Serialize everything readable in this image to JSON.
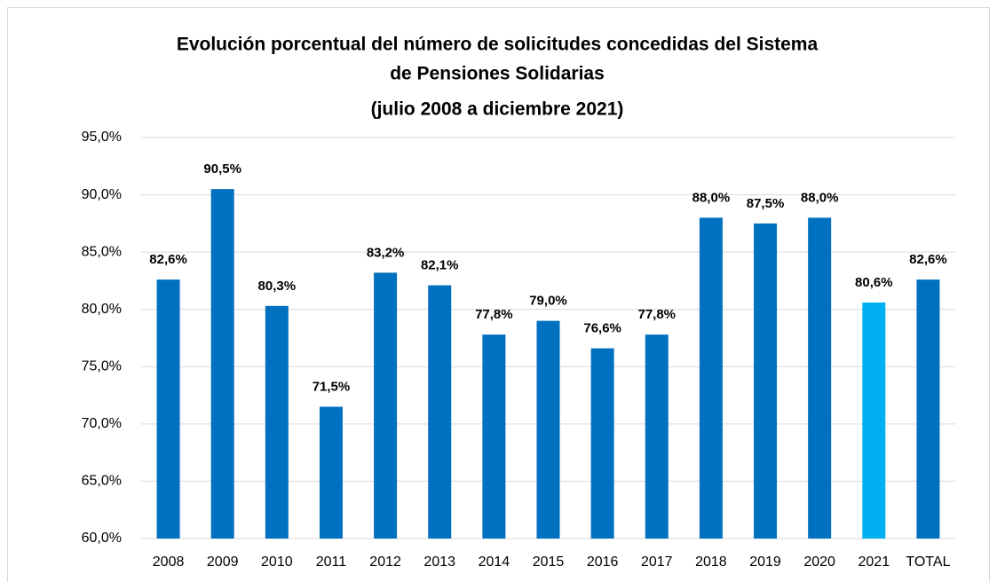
{
  "chart_data": {
    "type": "bar",
    "title": [
      "Evolución porcentual del número de solicitudes concedidas del Sistema",
      "de Pensiones Solidarias"
    ],
    "subtitle": "(julio 2008 a diciembre 2021)",
    "categories": [
      "2008",
      "2009",
      "2010",
      "2011",
      "2012",
      "2013",
      "2014",
      "2015",
      "2016",
      "2017",
      "2018",
      "2019",
      "2020",
      "2021",
      "TOTAL"
    ],
    "values": [
      82.6,
      90.5,
      80.3,
      71.5,
      83.2,
      82.1,
      77.8,
      79.0,
      76.6,
      77.8,
      88.0,
      87.5,
      88.0,
      80.6,
      82.6
    ],
    "value_labels": [
      "82,6%",
      "90,5%",
      "80,3%",
      "71,5%",
      "83,2%",
      "82,1%",
      "77,8%",
      "79,0%",
      "76,6%",
      "77,8%",
      "88,0%",
      "87,5%",
      "88,0%",
      "80,6%",
      "82,6%"
    ],
    "colors": [
      "#0070c0",
      "#0070c0",
      "#0070c0",
      "#0070c0",
      "#0070c0",
      "#0070c0",
      "#0070c0",
      "#0070c0",
      "#0070c0",
      "#0070c0",
      "#0070c0",
      "#0070c0",
      "#0070c0",
      "#00b0f0",
      "#0070c0"
    ],
    "ylim": [
      60,
      95
    ],
    "yticks": [
      {
        "value": 60,
        "label": "60,0%"
      },
      {
        "value": 65,
        "label": "65,0%"
      },
      {
        "value": 70,
        "label": "70,0%"
      },
      {
        "value": 75,
        "label": "75,0%"
      },
      {
        "value": 80,
        "label": "80,0%"
      },
      {
        "value": 85,
        "label": "85,0%"
      },
      {
        "value": 90,
        "label": "90,0%"
      },
      {
        "value": 95,
        "label": "95,0%"
      }
    ],
    "grid": true
  }
}
